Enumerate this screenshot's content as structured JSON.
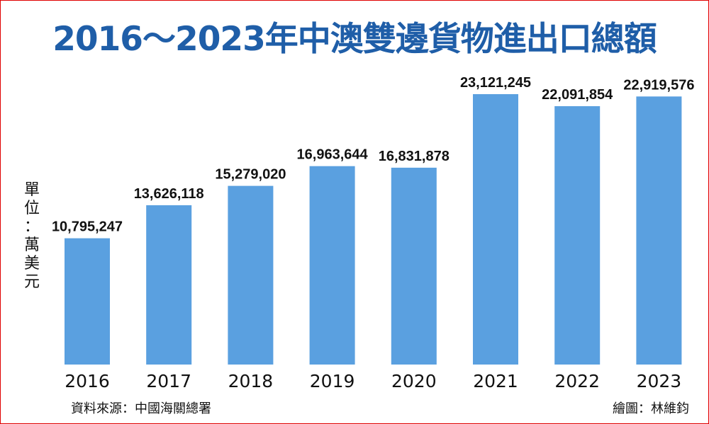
{
  "title": "2016～2023年中澳雙邊貨物進出口總額",
  "unit_label": [
    "單",
    "位",
    "：",
    "萬",
    "美",
    "元"
  ],
  "source": "資料來源：中國海關總署",
  "credit": "繪圖：林維鈞",
  "colors": {
    "title": "#1f5ea8",
    "bar": "#5aa0e0",
    "border": "#e00000"
  },
  "chart_data": {
    "type": "bar",
    "title": "2016～2023年中澳雙邊貨物進出口總額",
    "ylabel": "單位：萬美元",
    "xlabel": "",
    "categories": [
      "2016",
      "2017",
      "2018",
      "2019",
      "2020",
      "2021",
      "2022",
      "2023"
    ],
    "values": [
      10795247,
      13626118,
      15279020,
      16963644,
      16831878,
      23121245,
      22091854,
      22919576
    ],
    "data_labels": [
      "10,795,247",
      "13,626,118",
      "15,279,020",
      "16,963,644",
      "16,831,878",
      "23,121,245",
      "22,091,854",
      "22,919,576"
    ],
    "ylim": [
      0,
      23121245
    ],
    "grid": false,
    "legend": "none"
  }
}
